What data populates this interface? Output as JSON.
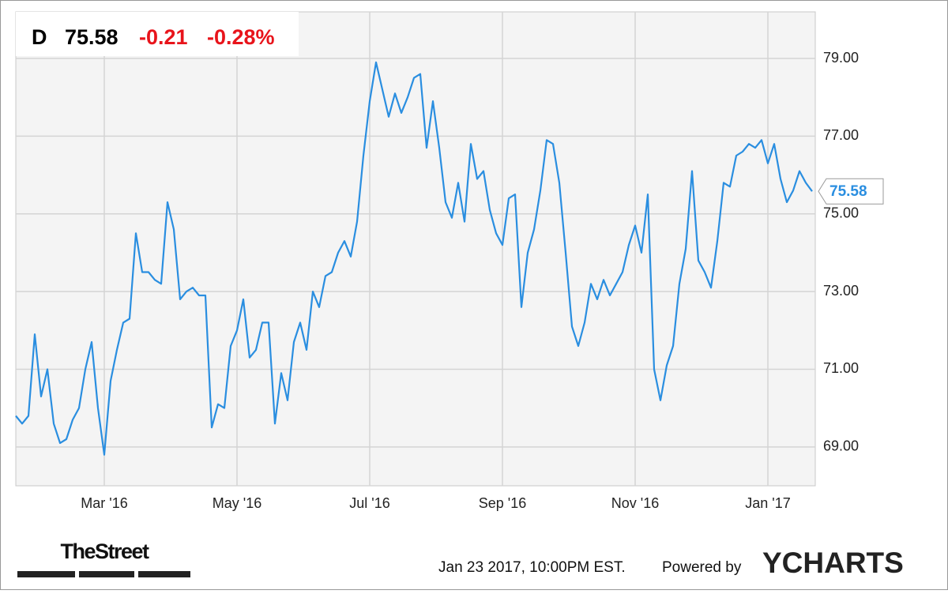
{
  "chart_data": {
    "type": "line",
    "quote": {
      "symbol": "D",
      "price": 75.58,
      "change": -0.21,
      "change_percent": "-0.28%"
    },
    "categories": [
      null,
      null,
      null,
      null,
      null,
      null,
      null,
      null,
      null,
      null,
      null,
      null,
      null,
      null,
      "Mar '16",
      null,
      null,
      null,
      null,
      null,
      null,
      null,
      null,
      null,
      null,
      null,
      null,
      null,
      null,
      null,
      null,
      null,
      null,
      null,
      null,
      "May '16",
      null,
      null,
      null,
      null,
      null,
      null,
      null,
      null,
      null,
      null,
      null,
      null,
      null,
      null,
      null,
      null,
      null,
      null,
      null,
      null,
      "Jul '16",
      null,
      null,
      null,
      null,
      null,
      null,
      null,
      null,
      null,
      null,
      null,
      null,
      null,
      null,
      null,
      null,
      null,
      null,
      null,
      null,
      "Sep '16",
      null,
      null,
      null,
      null,
      null,
      null,
      null,
      null,
      null,
      null,
      null,
      null,
      null,
      null,
      null,
      null,
      null,
      null,
      null,
      null,
      "Nov '16",
      null,
      null,
      null,
      null,
      null,
      null,
      null,
      null,
      null,
      null,
      null,
      null,
      null,
      null,
      null,
      null,
      null,
      null,
      null,
      null,
      "Jan '17",
      null,
      null,
      null,
      null,
      null,
      null,
      null
    ],
    "values": [
      69.8,
      69.6,
      69.8,
      71.9,
      70.3,
      71.0,
      69.6,
      69.1,
      69.2,
      69.7,
      70.0,
      71.0,
      71.7,
      70.0,
      68.8,
      70.7,
      71.5,
      72.2,
      72.3,
      74.5,
      73.5,
      73.5,
      73.3,
      73.2,
      75.3,
      74.6,
      72.8,
      73.0,
      73.1,
      72.9,
      72.9,
      69.5,
      70.1,
      70.0,
      71.6,
      72.0,
      72.8,
      71.3,
      71.5,
      72.2,
      72.2,
      69.6,
      70.9,
      70.2,
      71.7,
      72.2,
      71.5,
      73.0,
      72.6,
      73.4,
      73.5,
      74.0,
      74.3,
      73.9,
      74.8,
      76.5,
      77.9,
      78.9,
      78.2,
      77.5,
      78.1,
      77.6,
      78.0,
      78.5,
      78.6,
      76.7,
      77.9,
      76.7,
      75.3,
      74.9,
      75.8,
      74.8,
      76.8,
      75.9,
      76.1,
      75.1,
      74.5,
      74.2,
      75.4,
      75.5,
      72.6,
      74.0,
      74.6,
      75.6,
      76.9,
      76.8,
      75.8,
      74.0,
      72.1,
      71.6,
      72.2,
      73.2,
      72.8,
      73.3,
      72.9,
      73.2,
      73.5,
      74.2,
      74.7,
      74.0,
      75.5,
      71.0,
      70.2,
      71.1,
      71.6,
      73.2,
      74.1,
      76.1,
      73.8,
      73.5,
      73.1,
      74.3,
      75.8,
      75.7,
      76.5,
      76.6,
      76.8,
      76.7,
      76.9,
      76.3,
      76.8,
      75.9,
      75.3,
      75.6,
      76.1,
      75.8,
      75.58
    ],
    "color": "#2a8ee0",
    "ylim": [
      68.0,
      80.2
    ],
    "yticks": [
      {
        "value": 69,
        "label": "69.00"
      },
      {
        "value": 71,
        "label": "71.00"
      },
      {
        "value": 73,
        "label": "73.00"
      },
      {
        "value": 75,
        "label": "75.00"
      },
      {
        "value": 77,
        "label": "77.00"
      },
      {
        "value": 79,
        "label": "79.00"
      }
    ],
    "grid": true
  },
  "footer": {
    "source": "TheStreet",
    "timestamp": "Jan 23 2017, 10:00PM EST.",
    "powered": "Powered by",
    "brand": "YCHARTS"
  }
}
